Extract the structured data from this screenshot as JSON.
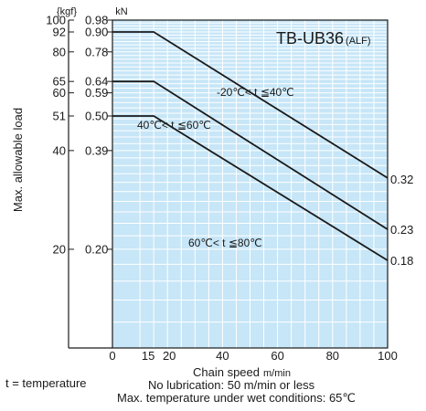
{
  "chart_data": {
    "type": "line",
    "title": "TB-UB36",
    "title_suffix": "(ALF)",
    "xlabel": "Chain speed",
    "xunit": "m/min",
    "ylabel": "Max. allowable load",
    "yunit_left": "{kgf}",
    "yunit_right": "kN",
    "xlim": [
      0,
      100
    ],
    "x_ticks": [
      "0",
      "15",
      "20",
      "40",
      "60",
      "80",
      "100"
    ],
    "y_scale": "log",
    "ylim_kgf": [
      10,
      100
    ],
    "y_ticks": [
      {
        "kgf": "100",
        "kN": "0.98"
      },
      {
        "kgf": "92",
        "kN": "0.90"
      },
      {
        "kgf": "80",
        "kN": "0.78"
      },
      {
        "kgf": "65",
        "kN": "0.64"
      },
      {
        "kgf": "60",
        "kN": "0.59"
      },
      {
        "kgf": "51",
        "kN": "0.50"
      },
      {
        "kgf": "40",
        "kN": "0.39"
      },
      {
        "kgf": "20",
        "kN": "0.20"
      }
    ],
    "series": [
      {
        "name": "-20℃< t ≦40℃",
        "x": [
          0,
          15,
          100
        ],
        "y_kgf": [
          92,
          92,
          33
        ],
        "end_label": "0.32"
      },
      {
        "name": "40℃< t ≦60℃",
        "x": [
          0,
          15,
          100
        ],
        "y_kgf": [
          65,
          65,
          23
        ],
        "end_label": "0.23"
      },
      {
        "name": "60℃< t ≦80℃",
        "x": [
          0,
          15,
          100
        ],
        "y_kgf": [
          51,
          51,
          18.5
        ],
        "end_label": "0.18"
      }
    ],
    "grid": true,
    "colors": {
      "plot_background": "#c7e6f7",
      "grid": "#ffffff",
      "line": "#1a1a1a"
    }
  },
  "notes": {
    "temperature": "t = temperature",
    "lubrication": "No lubrication: 50 m/min or less",
    "wet": "Max. temperature under wet conditions: 65℃"
  }
}
